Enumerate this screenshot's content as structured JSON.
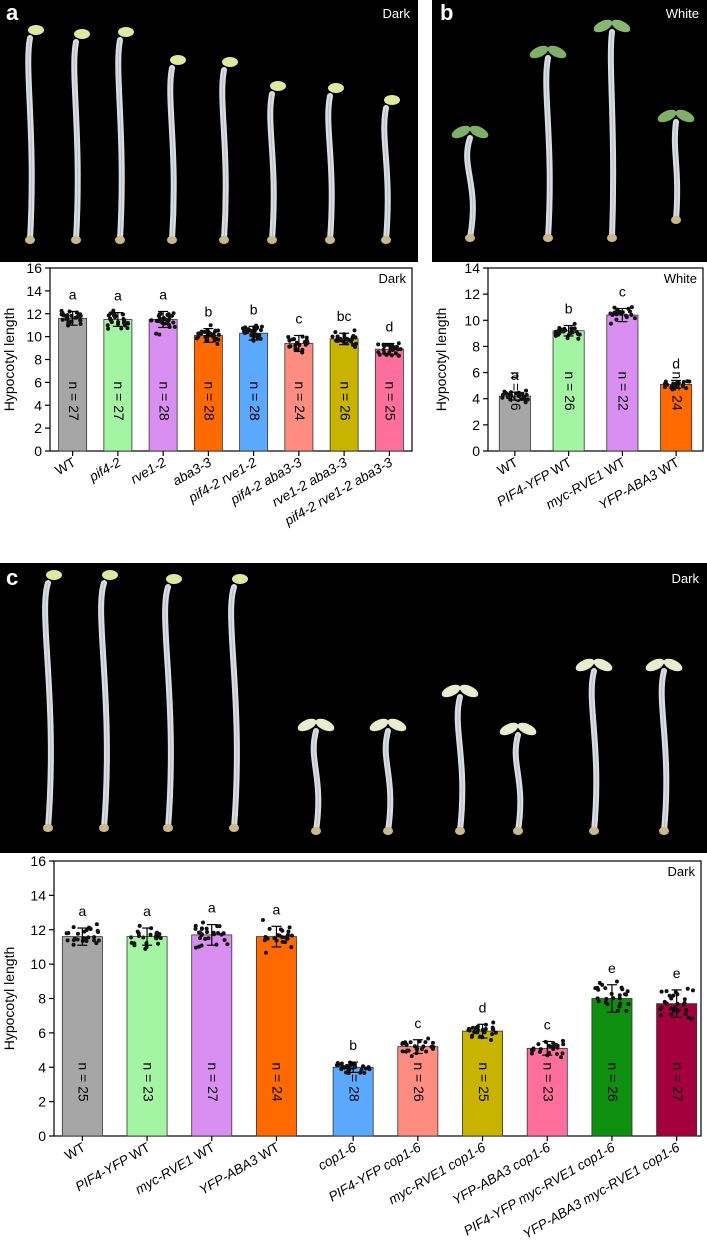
{
  "panels": {
    "a": {
      "label": "a",
      "photo_condition": "Dark"
    },
    "b": {
      "label": "b",
      "photo_condition": "White"
    },
    "c": {
      "label": "c",
      "photo_condition": "Dark"
    }
  },
  "colors": {
    "gray": "#a6a6a6",
    "green": "#a3f5a3",
    "violet": "#d98ef2",
    "orange": "#ff6a00",
    "blue": "#5aa8ff",
    "salmon": "#ff8c80",
    "olive": "#c8b400",
    "pink": "#ff6f9e",
    "darkgreen": "#0f8f0f",
    "crimson": "#a3003d"
  },
  "chart_data": [
    {
      "id": "a",
      "type": "bar",
      "condition": "Dark",
      "ylabel": "Hypocotyl length",
      "ylim": [
        0,
        16
      ],
      "yticks": [
        0,
        2,
        4,
        6,
        8,
        10,
        12,
        14,
        16
      ],
      "categories": [
        "WT",
        "pif4-2",
        "rve1-2",
        "aba3-3",
        "pif4-2 rve1-2",
        "pif4-2 aba3-3",
        "rve1-2 aba3-3",
        "pif4-2 rve1-2 aba3-3"
      ],
      "italic": [
        false,
        true,
        true,
        true,
        true,
        true,
        true,
        true
      ],
      "values": [
        11.6,
        11.5,
        11.5,
        10.1,
        10.3,
        9.4,
        9.8,
        8.9
      ],
      "sd": [
        0.6,
        0.6,
        0.7,
        0.6,
        0.6,
        0.7,
        0.5,
        0.5
      ],
      "n": [
        "n = 27",
        "n = 27",
        "n = 28",
        "n = 28",
        "n = 28",
        "n = 24",
        "n = 26",
        "n = 25"
      ],
      "letters": [
        "a",
        "a",
        "a",
        "b",
        "b",
        "c",
        "bc",
        "d"
      ],
      "colors": [
        "#a6a6a6",
        "#a3f5a3",
        "#d98ef2",
        "#ff6a00",
        "#5aa8ff",
        "#ff8c80",
        "#c8b400",
        "#ff6f9e"
      ]
    },
    {
      "id": "b",
      "type": "bar",
      "condition": "White",
      "ylabel": "Hypocotyl length",
      "ylim": [
        0,
        14
      ],
      "yticks": [
        0,
        2,
        4,
        6,
        8,
        10,
        12,
        14
      ],
      "categories": [
        "WT",
        "PIF4-YFP WT",
        "myc-RVE1 WT",
        "YFP-ABA3 WT"
      ],
      "italic_part": [
        "",
        "PIF4-YFP",
        "myc-RVE1",
        "YFP-ABA3"
      ],
      "values": [
        4.2,
        9.2,
        10.4,
        5.1
      ],
      "sd": [
        0.3,
        0.4,
        0.5,
        0.3
      ],
      "n": [
        "n = 26",
        "n = 26",
        "n = 22",
        "n = 24"
      ],
      "letters": [
        "a",
        "b",
        "c",
        "d"
      ],
      "colors": [
        "#a6a6a6",
        "#a3f5a3",
        "#d98ef2",
        "#ff6a00"
      ]
    },
    {
      "id": "c",
      "type": "bar",
      "condition": "Dark",
      "ylabel": "Hypocotyl length",
      "ylim": [
        0,
        16
      ],
      "yticks": [
        0,
        2,
        4,
        6,
        8,
        10,
        12,
        14,
        16
      ],
      "categories": [
        "WT",
        "PIF4-YFP WT",
        "myc-RVE1 WT",
        "YFP-ABA3 WT",
        "cop1-6",
        "PIF4-YFP cop1-6",
        "myc-RVE1 cop1-6",
        "YFP-ABA3 cop1-6",
        "PIF4-YFP myc-RVE1 cop1-6",
        "YFP-ABA3 myc-RVE1 cop1-6"
      ],
      "values": [
        11.6,
        11.6,
        11.7,
        11.6,
        4.0,
        5.2,
        6.1,
        5.1,
        8.0,
        7.7
      ],
      "sd": [
        0.5,
        0.5,
        0.6,
        0.6,
        0.3,
        0.4,
        0.4,
        0.4,
        0.8,
        0.8
      ],
      "n": [
        "n = 25",
        "n = 23",
        "n = 27",
        "n = 24",
        "n = 28",
        "n = 26",
        "n = 25",
        "n = 23",
        "n = 26",
        "n = 27"
      ],
      "letters": [
        "a",
        "a",
        "a",
        "a",
        "b",
        "c",
        "d",
        "c",
        "e",
        "e"
      ],
      "colors": [
        "#a6a6a6",
        "#a3f5a3",
        "#d98ef2",
        "#ff6a00",
        "#5aa8ff",
        "#ff8c80",
        "#c8b400",
        "#ff6f9e",
        "#0f8f0f",
        "#a3003d"
      ]
    }
  ]
}
